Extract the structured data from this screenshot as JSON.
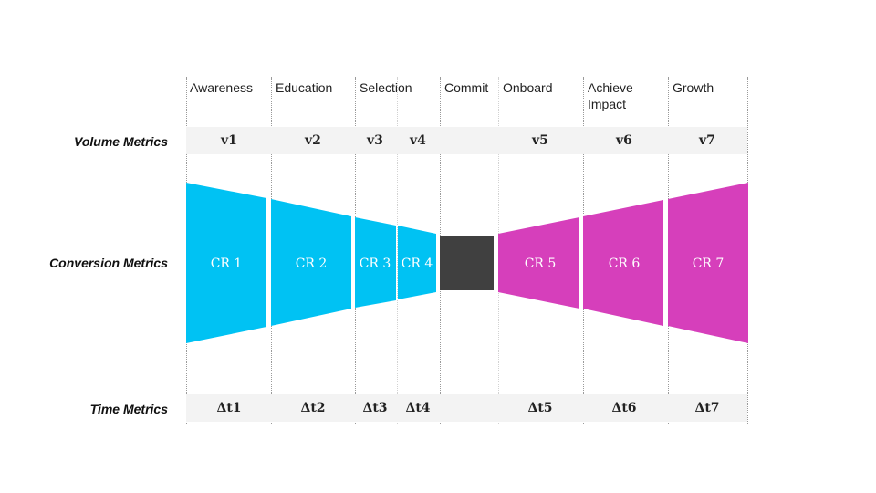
{
  "stages": [
    "Awareness",
    "Education",
    "Selection",
    "Commit",
    "Onboard",
    "Achieve Impact",
    "Growth"
  ],
  "row_labels": {
    "volume": "Volume Metrics",
    "conversion": "Conversion Metrics",
    "time": "Time Metrics"
  },
  "volume": [
    "v1",
    "v2",
    "v3",
    "v4",
    "v5",
    "v6",
    "v7"
  ],
  "conversion": [
    "CR 1",
    "CR 2",
    "CR 3",
    "CR 4",
    "CR 5",
    "CR 6",
    "CR 7"
  ],
  "time": [
    "Δt1",
    "Δt2",
    "Δt3",
    "Δt4",
    "Δt5",
    "Δt6",
    "Δt7"
  ],
  "colors": {
    "left_funnel": "#00c2f3",
    "commit": "#404040",
    "right_funnel": "#d63fbb"
  }
}
